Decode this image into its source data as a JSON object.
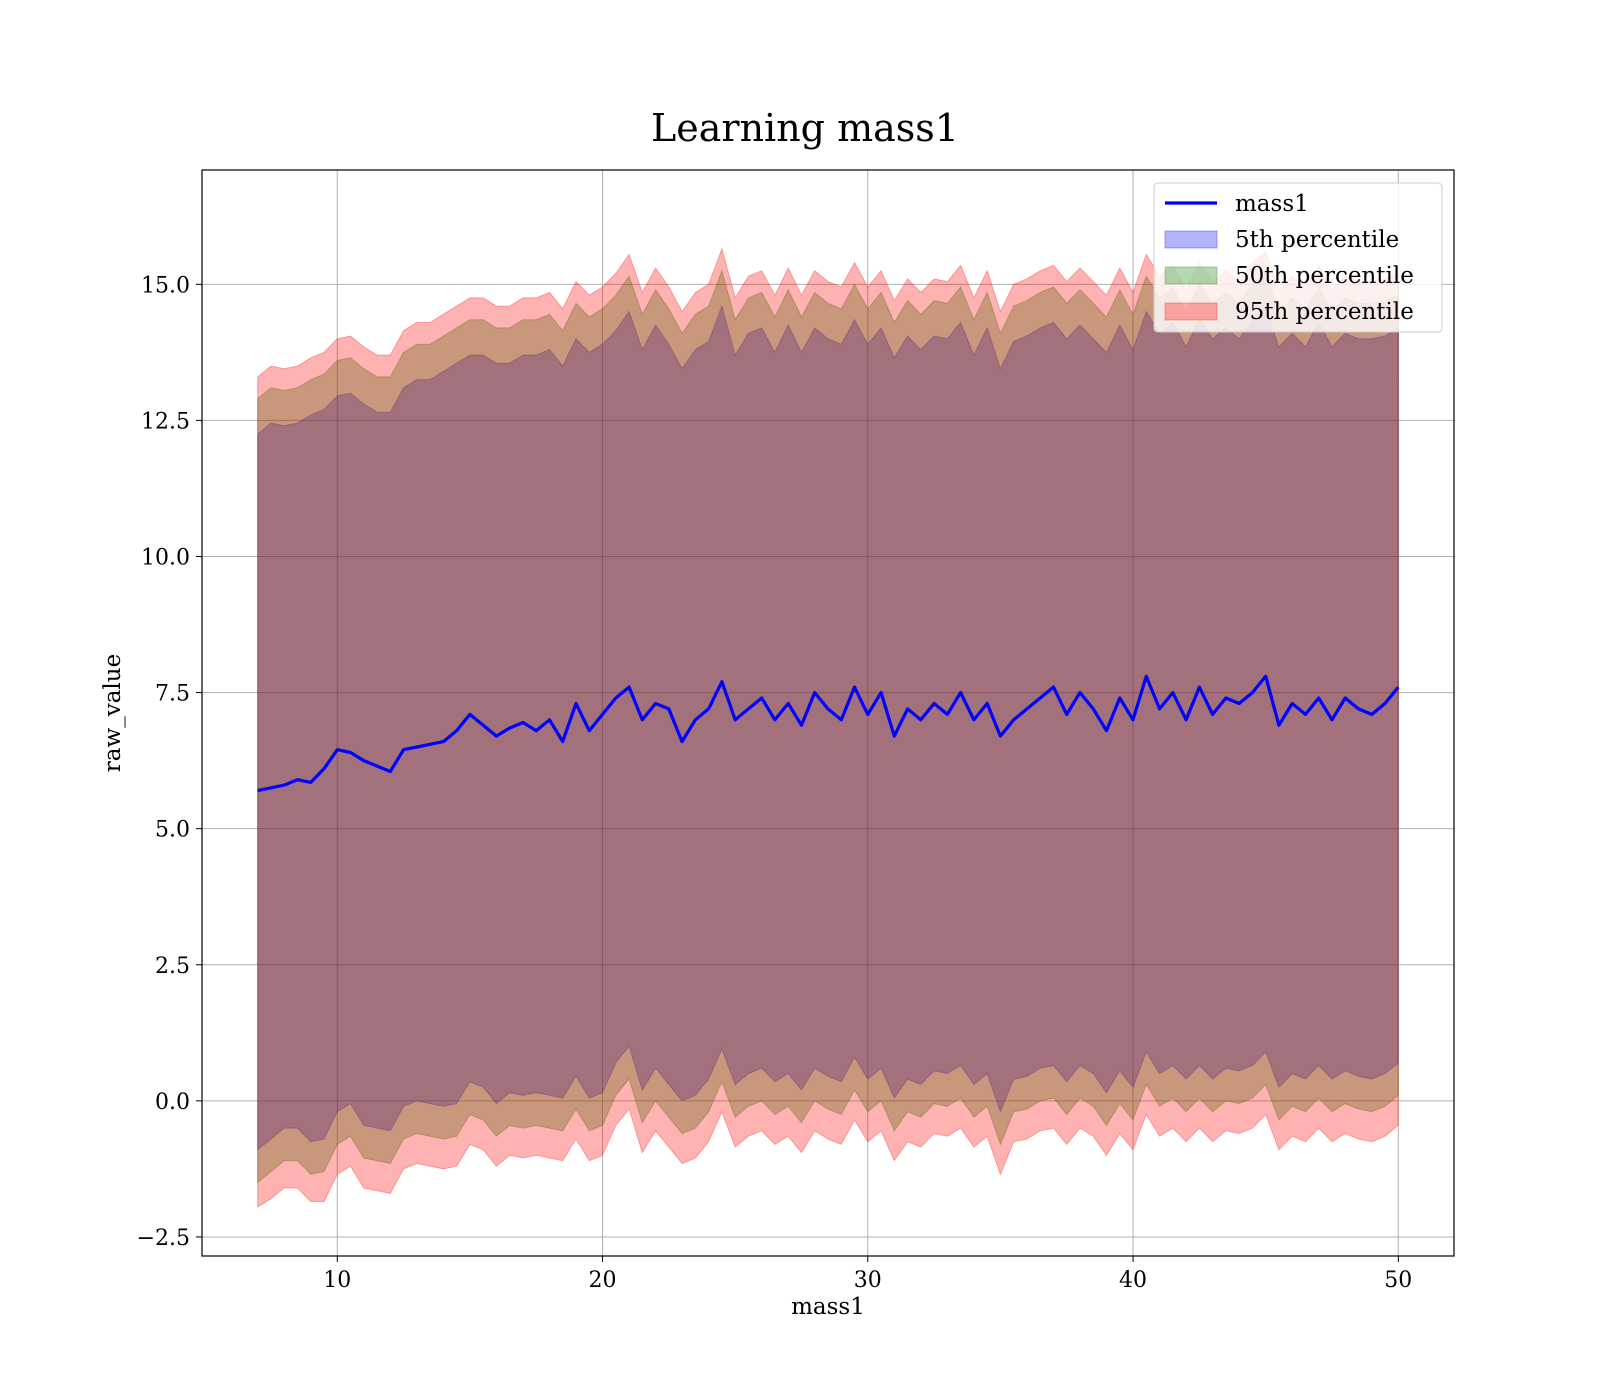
{
  "chart_data": {
    "type": "area",
    "title": "Learning mass1",
    "xlabel": "mass1",
    "ylabel": "raw_value",
    "xlim": [
      4.9,
      52.1
    ],
    "ylim": [
      -2.85,
      17.1
    ],
    "xticks": [
      10,
      20,
      30,
      40,
      50
    ],
    "xtick_labels": [
      "10",
      "20",
      "30",
      "40",
      "50"
    ],
    "yticks": [
      -2.5,
      0.0,
      2.5,
      5.0,
      7.5,
      10.0,
      12.5,
      15.0
    ],
    "ytick_labels": [
      "−2.5",
      "0.0",
      "2.5",
      "5.0",
      "7.5",
      "10.0",
      "12.5",
      "15.0"
    ],
    "grid": true,
    "legend_position": "top-right",
    "legend": [
      {
        "label": "mass1",
        "kind": "line",
        "color": "#0000ff"
      },
      {
        "label": "5th percentile",
        "kind": "patch",
        "color": "#0000ff"
      },
      {
        "label": "50th percentile",
        "kind": "patch",
        "color": "#008000"
      },
      {
        "label": "95th percentile",
        "kind": "patch",
        "color": "#ff0000"
      }
    ],
    "line": {
      "name": "mass1",
      "color": "#0000ff",
      "x": [
        7,
        7.5,
        8,
        8.5,
        9,
        9.5,
        10,
        10.5,
        11,
        11.5,
        12,
        12.5,
        13,
        13.5,
        14,
        14.5,
        15,
        15.5,
        16,
        16.5,
        17,
        17.5,
        18,
        18.5,
        19,
        19.5,
        20,
        20.5,
        21,
        21.5,
        22,
        22.5,
        23,
        23.5,
        24,
        24.5,
        25,
        25.5,
        26,
        26.5,
        27,
        27.5,
        28,
        28.5,
        29,
        29.5,
        30,
        30.5,
        31,
        31.5,
        32,
        32.5,
        33,
        33.5,
        34,
        34.5,
        35,
        35.5,
        36,
        36.5,
        37,
        37.5,
        38,
        38.5,
        39,
        39.5,
        40,
        40.5,
        41,
        41.5,
        42,
        42.5,
        43,
        43.5,
        44,
        44.5,
        45,
        45.5,
        46,
        46.5,
        47,
        47.5,
        48,
        48.5,
        49,
        49.5,
        50
      ],
      "y": [
        5.7,
        5.75,
        5.8,
        5.9,
        5.85,
        6.1,
        6.45,
        6.4,
        6.25,
        6.15,
        6.05,
        6.45,
        6.5,
        6.55,
        6.6,
        6.8,
        7.1,
        6.9,
        6.7,
        6.85,
        6.95,
        6.8,
        7.0,
        6.6,
        7.3,
        6.8,
        7.1,
        7.4,
        7.6,
        7.0,
        7.3,
        7.2,
        6.6,
        7.0,
        7.2,
        7.7,
        7.0,
        7.2,
        7.4,
        7.0,
        7.3,
        6.9,
        7.5,
        7.2,
        7.0,
        7.6,
        7.1,
        7.5,
        6.7,
        7.2,
        7.0,
        7.3,
        7.1,
        7.5,
        7.0,
        7.3,
        6.7,
        7.0,
        7.2,
        7.4,
        7.6,
        7.1,
        7.5,
        7.2,
        6.8,
        7.4,
        7.0,
        7.8,
        7.2,
        7.5,
        7.0,
        7.6,
        7.1,
        7.4,
        7.3,
        7.5,
        7.8,
        6.9,
        7.3,
        7.1,
        7.4,
        7.0,
        7.4,
        7.2,
        7.1,
        7.3,
        7.6
      ]
    },
    "bands": [
      {
        "name": "5th percentile",
        "color": "#0000ff",
        "lower_offset": [
          -6.6,
          -6.45,
          -6.3,
          -6.4,
          -6.6,
          -6.8,
          -6.65,
          -6.45,
          -6.7,
          -6.65,
          -6.6,
          -6.55,
          -6.5,
          -6.6,
          -6.7,
          -6.85,
          -6.75,
          -6.65,
          -6.75,
          -6.7,
          -6.85,
          -6.65,
          -6.9,
          -6.55,
          -6.85,
          -6.75,
          -6.95,
          -6.7,
          -6.6,
          -6.8,
          -6.7,
          -6.9,
          -6.6,
          -6.9,
          -6.8,
          -6.75,
          -6.7,
          -6.7,
          -6.8,
          -6.65,
          -6.8,
          -6.7,
          -6.9,
          -6.75,
          -6.65,
          -6.8,
          -6.7,
          -6.9,
          -6.65,
          -6.8,
          -6.7,
          -6.75,
          -6.6,
          -6.85,
          -6.7,
          -6.8,
          -6.9,
          -6.6,
          -6.75,
          -6.8,
          -6.95,
          -6.75,
          -6.85,
          -6.7,
          -6.65,
          -6.85,
          -6.75,
          -6.9,
          -6.7,
          -6.85,
          -6.6,
          -6.95,
          -6.7,
          -6.8,
          -6.75,
          -6.85,
          -6.9,
          -6.65,
          -6.8,
          -6.7,
          -6.75,
          -6.6,
          -6.85,
          -6.75,
          -6.7,
          -6.8,
          -6.9
        ],
        "upper_offset": [
          6.55,
          6.7,
          6.6,
          6.55,
          6.75,
          6.6,
          6.5,
          6.6,
          6.55,
          6.5,
          6.6,
          6.65,
          6.75,
          6.7,
          6.8,
          6.75,
          6.6,
          6.8,
          6.85,
          6.7,
          6.75,
          6.9,
          6.8,
          6.9,
          6.7,
          6.95,
          6.8,
          6.75,
          6.9,
          6.8,
          6.95,
          6.7,
          6.85,
          6.8,
          6.75,
          6.9,
          6.7,
          6.9,
          6.8,
          6.75,
          6.95,
          6.85,
          6.7,
          6.8,
          6.9,
          6.75,
          6.8,
          6.7,
          6.95,
          6.85,
          6.8,
          6.75,
          6.9,
          6.8,
          6.7,
          6.9,
          6.75,
          6.95,
          6.85,
          6.8,
          6.7,
          6.9,
          6.75,
          6.8,
          6.95,
          6.85,
          6.8,
          6.7,
          6.9,
          6.8,
          6.85,
          6.75,
          6.9,
          6.8,
          6.7,
          6.85,
          6.75,
          6.95,
          6.8,
          6.75,
          6.9,
          6.85,
          6.7,
          6.8,
          6.9,
          6.75,
          6.6
        ]
      },
      {
        "name": "50th percentile",
        "color": "#008000",
        "lower_offset": [
          -7.2,
          -7.05,
          -6.9,
          -7.0,
          -7.2,
          -7.4,
          -7.25,
          -7.05,
          -7.3,
          -7.25,
          -7.2,
          -7.15,
          -7.1,
          -7.2,
          -7.3,
          -7.45,
          -7.35,
          -7.25,
          -7.35,
          -7.3,
          -7.45,
          -7.25,
          -7.5,
          -7.15,
          -7.45,
          -7.35,
          -7.55,
          -7.3,
          -7.2,
          -7.4,
          -7.3,
          -7.5,
          -7.2,
          -7.5,
          -7.4,
          -7.35,
          -7.3,
          -7.3,
          -7.4,
          -7.25,
          -7.4,
          -7.3,
          -7.5,
          -7.35,
          -7.25,
          -7.4,
          -7.3,
          -7.5,
          -7.25,
          -7.4,
          -7.3,
          -7.35,
          -7.2,
          -7.45,
          -7.3,
          -7.4,
          -7.5,
          -7.2,
          -7.35,
          -7.4,
          -7.55,
          -7.35,
          -7.45,
          -7.3,
          -7.25,
          -7.45,
          -7.35,
          -7.5,
          -7.3,
          -7.45,
          -7.2,
          -7.55,
          -7.3,
          -7.4,
          -7.35,
          -7.45,
          -7.5,
          -7.25,
          -7.4,
          -7.3,
          -7.35,
          -7.2,
          -7.45,
          -7.35,
          -7.3,
          -7.4,
          -7.5
        ],
        "upper_offset": [
          7.2,
          7.35,
          7.25,
          7.2,
          7.4,
          7.25,
          7.15,
          7.25,
          7.2,
          7.15,
          7.25,
          7.3,
          7.4,
          7.35,
          7.45,
          7.4,
          7.25,
          7.45,
          7.5,
          7.35,
          7.4,
          7.55,
          7.45,
          7.55,
          7.35,
          7.6,
          7.45,
          7.4,
          7.55,
          7.45,
          7.6,
          7.35,
          7.5,
          7.45,
          7.4,
          7.55,
          7.35,
          7.55,
          7.45,
          7.4,
          7.6,
          7.5,
          7.35,
          7.45,
          7.55,
          7.4,
          7.45,
          7.35,
          7.6,
          7.5,
          7.45,
          7.4,
          7.55,
          7.45,
          7.35,
          7.55,
          7.4,
          7.6,
          7.5,
          7.45,
          7.35,
          7.55,
          7.4,
          7.45,
          7.6,
          7.5,
          7.45,
          7.35,
          7.55,
          7.45,
          7.5,
          7.4,
          7.55,
          7.45,
          7.35,
          7.5,
          7.4,
          7.6,
          7.45,
          7.4,
          7.55,
          7.5,
          7.35,
          7.45,
          7.55,
          7.4,
          7.2
        ]
      },
      {
        "name": "95th percentile",
        "color": "#ff0000",
        "lower_offset": [
          -7.65,
          -7.55,
          -7.4,
          -7.5,
          -7.7,
          -7.95,
          -7.8,
          -7.6,
          -7.85,
          -7.8,
          -7.75,
          -7.7,
          -7.65,
          -7.75,
          -7.85,
          -8.0,
          -7.9,
          -7.8,
          -7.9,
          -7.85,
          -8.0,
          -7.8,
          -8.05,
          -7.7,
          -8.0,
          -7.9,
          -8.1,
          -7.85,
          -7.75,
          -7.95,
          -7.85,
          -8.05,
          -7.75,
          -8.05,
          -7.95,
          -7.9,
          -7.85,
          -7.85,
          -7.95,
          -7.8,
          -7.95,
          -7.85,
          -8.05,
          -7.9,
          -7.8,
          -7.95,
          -7.85,
          -8.05,
          -7.8,
          -7.95,
          -7.85,
          -7.9,
          -7.75,
          -8.0,
          -7.85,
          -7.95,
          -8.05,
          -7.75,
          -7.9,
          -7.95,
          -8.1,
          -7.9,
          -8.0,
          -7.85,
          -7.8,
          -8.0,
          -7.9,
          -8.05,
          -7.85,
          -8.0,
          -7.75,
          -8.1,
          -7.85,
          -7.95,
          -7.9,
          -8.0,
          -8.05,
          -7.8,
          -7.95,
          -7.85,
          -7.9,
          -7.75,
          -8.0,
          -7.9,
          -7.85,
          -7.95,
          -8.05
        ],
        "upper_offset": [
          7.6,
          7.75,
          7.65,
          7.6,
          7.8,
          7.65,
          7.55,
          7.65,
          7.6,
          7.55,
          7.65,
          7.7,
          7.8,
          7.75,
          7.85,
          7.8,
          7.65,
          7.85,
          7.9,
          7.75,
          7.8,
          7.95,
          7.85,
          7.95,
          7.75,
          8.0,
          7.85,
          7.8,
          7.95,
          7.85,
          8.0,
          7.75,
          7.9,
          7.85,
          7.8,
          7.95,
          7.75,
          7.95,
          7.85,
          7.8,
          8.0,
          7.9,
          7.75,
          7.85,
          7.95,
          7.8,
          7.85,
          7.75,
          8.0,
          7.9,
          7.85,
          7.8,
          7.95,
          7.85,
          7.75,
          7.95,
          7.8,
          8.0,
          7.9,
          7.85,
          7.75,
          7.95,
          7.8,
          7.85,
          8.0,
          7.9,
          7.85,
          7.75,
          7.95,
          7.85,
          7.9,
          7.8,
          7.95,
          7.85,
          7.75,
          7.9,
          7.8,
          8.0,
          7.85,
          7.8,
          7.95,
          7.9,
          7.75,
          7.85,
          7.95,
          7.8,
          7.6
        ]
      }
    ]
  }
}
